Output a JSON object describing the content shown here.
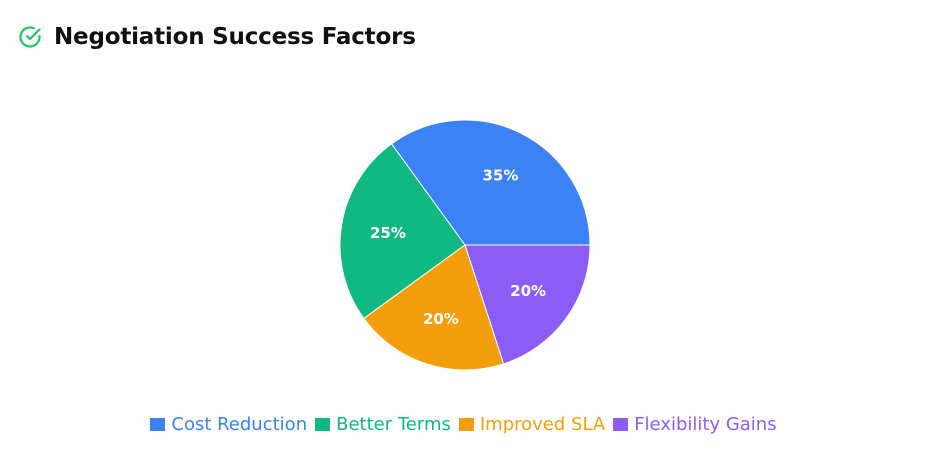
{
  "header": {
    "title": "Negotiation Success Factors",
    "icon": "check-circle-icon",
    "icon_color": "#22c55e"
  },
  "chart_data": {
    "type": "pie",
    "title": "Negotiation Success Factors",
    "categories": [
      "Cost Reduction",
      "Better Terms",
      "Improved SLA",
      "Flexibility Gains"
    ],
    "values": [
      35,
      25,
      20,
      20
    ],
    "labels": [
      "35%",
      "25%",
      "20%",
      "20%"
    ],
    "colors": [
      "#3b82f6",
      "#10b981",
      "#f59e0b",
      "#8b5cf6"
    ],
    "legend_position": "bottom"
  }
}
